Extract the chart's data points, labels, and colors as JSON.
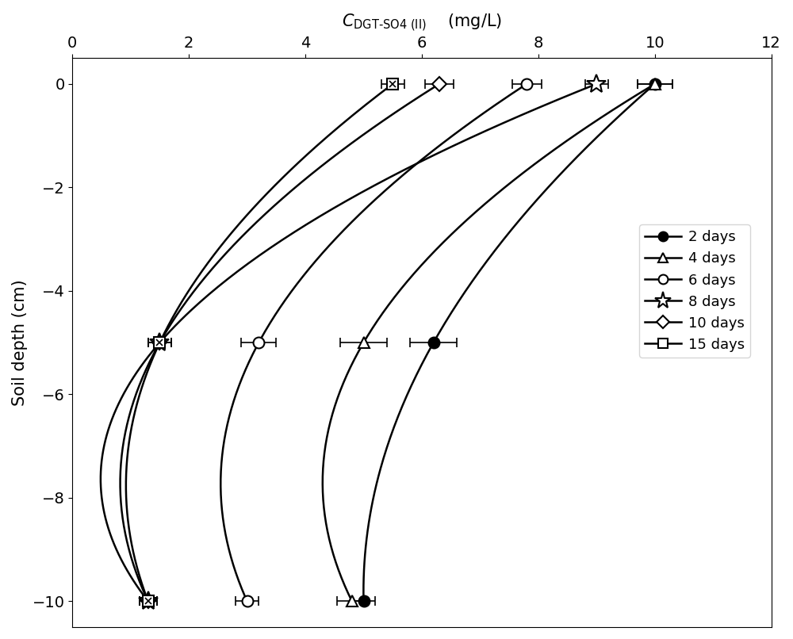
{
  "title": "$C_{\\mathrm{DGT\\text{-}SO4\\,(II)}}$    (mg/L)",
  "xlabel_top": "$C_{\\mathrm{DGT-SO4\\,(II)}}$    (mg/L)",
  "ylabel": "Soil depth (cm)",
  "xlim": [
    0,
    12
  ],
  "ylim": [
    -10.5,
    0.5
  ],
  "xticks": [
    0,
    2,
    4,
    6,
    8,
    10,
    12
  ],
  "yticks": [
    0,
    -2,
    -4,
    -6,
    -8,
    -10
  ],
  "series": [
    {
      "label": "2 days",
      "marker": "o",
      "fillstyle": "full",
      "color": "black",
      "depths": [
        0,
        -5,
        -10
      ],
      "values": [
        10.0,
        6.2,
        5.0
      ],
      "xerr": [
        0.3,
        0.4,
        0.2
      ]
    },
    {
      "label": "4 days",
      "marker": "^",
      "fillstyle": "none",
      "color": "black",
      "depths": [
        0,
        -5,
        -10
      ],
      "values": [
        10.0,
        5.0,
        4.8
      ],
      "xerr": [
        0.3,
        0.4,
        0.25
      ]
    },
    {
      "label": "6 days",
      "marker": "o",
      "fillstyle": "none",
      "color": "black",
      "depths": [
        0,
        -5,
        -10
      ],
      "values": [
        7.8,
        3.2,
        3.0
      ],
      "xerr": [
        0.25,
        0.3,
        0.2
      ]
    },
    {
      "label": "8 days",
      "marker": "*",
      "fillstyle": "none",
      "color": "black",
      "depths": [
        0,
        -5,
        -10
      ],
      "values": [
        9.0,
        1.5,
        1.3
      ],
      "xerr": [
        0.2,
        0.2,
        0.15
      ]
    },
    {
      "label": "10 days",
      "marker": "D",
      "fillstyle": "none",
      "color": "black",
      "depths": [
        0,
        -5,
        -10
      ],
      "values": [
        6.3,
        1.5,
        1.3
      ],
      "xerr": [
        0.25,
        0.2,
        0.15
      ]
    },
    {
      "label": "15 days",
      "marker": "s",
      "fillstyle": "none",
      "color": "black",
      "depths": [
        0,
        -5,
        -10
      ],
      "values": [
        5.5,
        1.5,
        1.3
      ],
      "xerr": [
        0.2,
        0.2,
        0.15
      ]
    }
  ],
  "markersize": 10,
  "linewidth": 1.8,
  "figsize": [
    10.0,
    8.06
  ],
  "dpi": 100
}
